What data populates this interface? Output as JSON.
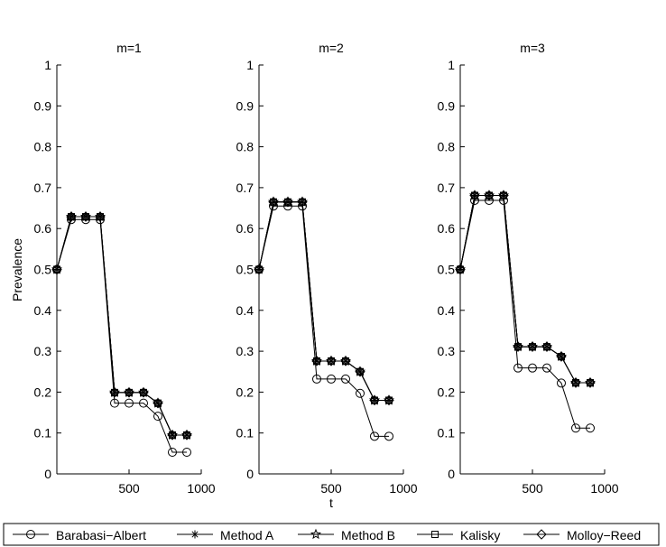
{
  "chart_data": {
    "type": "line",
    "ylabel": "Prevalence",
    "xlabel": "t",
    "xlim": [
      0,
      1000
    ],
    "ylim": [
      0,
      1
    ],
    "xticks": [
      500,
      1000
    ],
    "yticks": [
      0,
      0.1,
      0.2,
      0.3,
      0.4,
      0.5,
      0.6,
      0.7,
      0.8,
      0.9,
      1
    ],
    "x": [
      0,
      100,
      200,
      300,
      400,
      500,
      600,
      700,
      800,
      900
    ],
    "legend": [
      {
        "name": "Barabasi−Albert",
        "marker": "circle"
      },
      {
        "name": "Method A",
        "marker": "asterisk"
      },
      {
        "name": "Method B",
        "marker": "star"
      },
      {
        "name": "Kalisky",
        "marker": "square"
      },
      {
        "name": "Molloy−Reed",
        "marker": "diamond"
      }
    ],
    "panels": [
      {
        "title": "m=1",
        "series": [
          {
            "name": "Barabasi−Albert",
            "values": [
              0.5,
              0.622,
              0.622,
              0.622,
              0.173,
              0.173,
              0.173,
              0.141,
              0.053,
              0.053
            ]
          },
          {
            "name": "Method A",
            "values": [
              0.5,
              0.629,
              0.629,
              0.629,
              0.199,
              0.199,
              0.199,
              0.173,
              0.095,
              0.095
            ]
          },
          {
            "name": "Method B",
            "values": [
              0.5,
              0.629,
              0.629,
              0.629,
              0.199,
              0.199,
              0.199,
              0.173,
              0.095,
              0.095
            ]
          },
          {
            "name": "Kalisky",
            "values": [
              0.5,
              0.629,
              0.629,
              0.629,
              0.199,
              0.199,
              0.199,
              0.173,
              0.095,
              0.095
            ]
          },
          {
            "name": "Molloy−Reed",
            "values": [
              0.5,
              0.629,
              0.629,
              0.629,
              0.199,
              0.199,
              0.199,
              0.173,
              0.095,
              0.095
            ]
          }
        ]
      },
      {
        "title": "m=2",
        "series": [
          {
            "name": "Barabasi−Albert",
            "values": [
              0.5,
              0.655,
              0.655,
              0.655,
              0.232,
              0.232,
              0.232,
              0.197,
              0.092,
              0.092
            ]
          },
          {
            "name": "Method A",
            "values": [
              0.5,
              0.665,
              0.665,
              0.665,
              0.276,
              0.276,
              0.276,
              0.25,
              0.18,
              0.18
            ]
          },
          {
            "name": "Method B",
            "values": [
              0.5,
              0.665,
              0.665,
              0.665,
              0.276,
              0.276,
              0.276,
              0.25,
              0.18,
              0.18
            ]
          },
          {
            "name": "Kalisky",
            "values": [
              0.5,
              0.665,
              0.665,
              0.665,
              0.276,
              0.276,
              0.276,
              0.25,
              0.18,
              0.18
            ]
          },
          {
            "name": "Molloy−Reed",
            "values": [
              0.5,
              0.665,
              0.665,
              0.665,
              0.276,
              0.276,
              0.276,
              0.25,
              0.18,
              0.18
            ]
          }
        ]
      },
      {
        "title": "m=3",
        "series": [
          {
            "name": "Barabasi−Albert",
            "values": [
              0.5,
              0.669,
              0.669,
              0.669,
              0.259,
              0.259,
              0.259,
              0.222,
              0.112,
              0.112
            ]
          },
          {
            "name": "Method A",
            "values": [
              0.5,
              0.681,
              0.681,
              0.681,
              0.311,
              0.311,
              0.311,
              0.287,
              0.223,
              0.223
            ]
          },
          {
            "name": "Method B",
            "values": [
              0.5,
              0.681,
              0.681,
              0.681,
              0.311,
              0.311,
              0.311,
              0.287,
              0.223,
              0.223
            ]
          },
          {
            "name": "Kalisky",
            "values": [
              0.5,
              0.681,
              0.681,
              0.681,
              0.311,
              0.311,
              0.311,
              0.287,
              0.223,
              0.223
            ]
          },
          {
            "name": "Molloy−Reed",
            "values": [
              0.5,
              0.681,
              0.681,
              0.681,
              0.311,
              0.311,
              0.311,
              0.287,
              0.223,
              0.223
            ]
          }
        ]
      }
    ]
  }
}
